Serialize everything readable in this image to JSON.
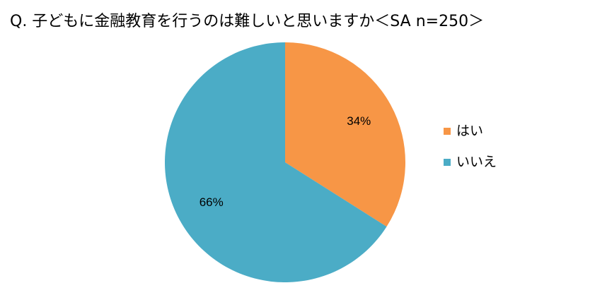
{
  "chart_data": {
    "type": "pie",
    "title": "Q. 子どもに金融教育を行うのは難しいと思いますか＜SA n=250＞",
    "categories": [
      "はい",
      "いいえ"
    ],
    "values": [
      34,
      66
    ],
    "value_labels": [
      "34%",
      "66%"
    ],
    "colors": [
      "#f79646",
      "#4bacc6"
    ],
    "legend": "right"
  }
}
